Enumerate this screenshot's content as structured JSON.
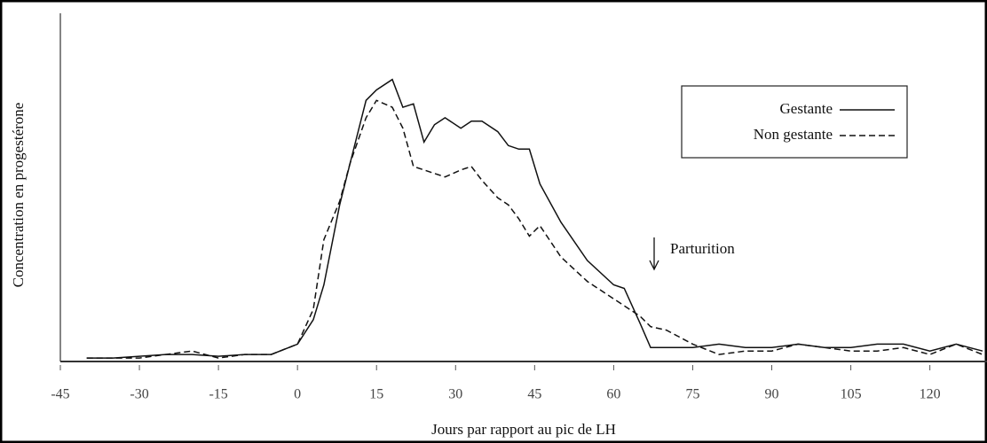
{
  "chart_data": {
    "type": "line",
    "y_label": "Concentration en progestérone",
    "x_label": "Jours par rapport au pic de LH",
    "annotation": "Parturition",
    "x": [
      -40,
      -35,
      -30,
      -25,
      -20,
      -15,
      -10,
      -5,
      0,
      3,
      5,
      8,
      10,
      13,
      15,
      18,
      20,
      22,
      24,
      26,
      28,
      31,
      33,
      35,
      38,
      40,
      42,
      44,
      46,
      50,
      55,
      60,
      62,
      65,
      67,
      70,
      75,
      80,
      85,
      90,
      95,
      100,
      105,
      110,
      115,
      120,
      125,
      130
    ],
    "series": [
      {
        "name": "Gestante",
        "color": "#111",
        "dash": false,
        "values": [
          1,
          1,
          1.5,
          2,
          2,
          1.5,
          2,
          2,
          5,
          12,
          22,
          45,
          57,
          75,
          78,
          81,
          73,
          74,
          63,
          68,
          70,
          67,
          69,
          69,
          66,
          62,
          61,
          61,
          51,
          40,
          29,
          22,
          21,
          11,
          4,
          4,
          4,
          5,
          4,
          4,
          5,
          4,
          4,
          5,
          5,
          3,
          5,
          3
        ]
      },
      {
        "name": "Non gestante",
        "color": "#111",
        "dash": true,
        "values": [
          1,
          1,
          1,
          2,
          3,
          1,
          2,
          2,
          5,
          15,
          35,
          46,
          57,
          70,
          75,
          73,
          67,
          56,
          55,
          54,
          53,
          55,
          56,
          52,
          47,
          45,
          41,
          36,
          39,
          30,
          23,
          18,
          16,
          13,
          10,
          9,
          5,
          2,
          3,
          3,
          5,
          4,
          3,
          3,
          4,
          2,
          5,
          2
        ]
      }
    ],
    "xlim": [
      -45,
      130
    ],
    "xticks": [
      -45,
      -30,
      -15,
      0,
      15,
      30,
      45,
      60,
      75,
      90,
      105,
      120
    ],
    "ylim": [
      0,
      100
    ],
    "legend": "top-right"
  }
}
